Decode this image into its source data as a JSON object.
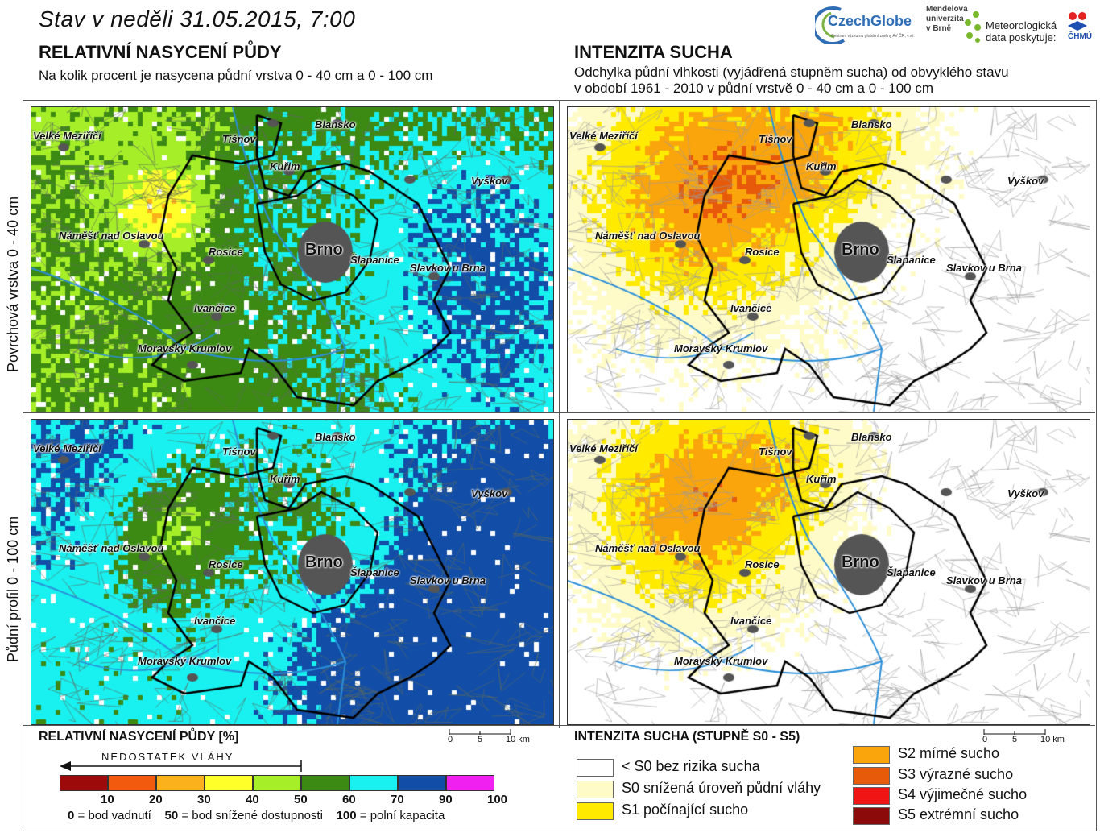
{
  "header": {
    "title": "Stav v neděli 31.05.2015, 7:00",
    "left_heading": "RELATIVNÍ NASYCENÍ PŮDY",
    "left_subtitle": "Na kolik procent je nasycena půdní vrstva 0 - 40 cm a 0 - 100 cm",
    "right_heading": "INTENZITA SUCHA",
    "right_subtitle_1": "Odchylka půdní vlhkosti (vyjádřená stupněm sucha) od obvyklého stavu",
    "right_subtitle_2": "v období 1961 - 2010 v půdní vrstvě 0 - 40 cm a 0 - 100 cm"
  },
  "logos": {
    "czechglobe": "CzechGlobe",
    "czechglobe_tag": "Centrum výzkumu globální změny AV ČR, v.v.i.",
    "mendel_1": "Mendelova",
    "mendel_2": "univerzita",
    "mendel_3": "v Brně",
    "meteo_1": "Meteorologická",
    "meteo_2": "data poskytuje:",
    "chmu": "ČHMÚ"
  },
  "rows": {
    "top": "Povrchová vrstva 0 - 40 cm",
    "bottom": "Půdní profil 0 - 100 cm"
  },
  "towns": [
    "Velké Meziříčí",
    "Tišnov",
    "Blansko",
    "Kuřim",
    "Vyškov",
    "Náměšť nad Oslavou",
    "Rosice",
    "Brno",
    "Šlapanice",
    "Slavkov u Brna",
    "Ivančice",
    "Moravský Krumlov"
  ],
  "saturation_legend": {
    "title": "RELATIVNÍ NASYCENÍ PŮDY [%]",
    "arrow_label": "NEDOSTATEK VLÁHY",
    "ticks": [
      "10",
      "20",
      "30",
      "40",
      "50",
      "60",
      "70",
      "90",
      "100"
    ],
    "colors": [
      "#9c0a0a",
      "#f25a0e",
      "#fbb11b",
      "#ffff2a",
      "#a6ef28",
      "#3c8a14",
      "#19f0f0",
      "#124ea8",
      "#f020f0"
    ],
    "notes": [
      {
        "num": "0",
        "text": " = bod vadnutí"
      },
      {
        "num": "50",
        "text": " = bod snížené dostupnosti"
      },
      {
        "num": "100",
        "text": " = polní kapacita"
      }
    ]
  },
  "drought_legend": {
    "title": "INTENZITA SUCHA (STUPNĚ S0 - S5)",
    "items": [
      {
        "label": "< S0 bez rizika sucha",
        "color": "#ffffff"
      },
      {
        "label": "S0 snížená úroveň půdní vláhy",
        "color": "#fffbc8"
      },
      {
        "label": "S1 počínající sucho",
        "color": "#ffea00"
      },
      {
        "label": "S2 mírné sucho",
        "color": "#fba50c"
      },
      {
        "label": "S3 výrazné sucho",
        "color": "#e65a0a"
      },
      {
        "label": "S4 výjimečné sucho",
        "color": "#f01414"
      },
      {
        "label": "S5 extrémní sucho",
        "color": "#8c0a0a"
      }
    ]
  },
  "scale": {
    "t0": "0",
    "t1": "5",
    "t2": "10 km"
  }
}
